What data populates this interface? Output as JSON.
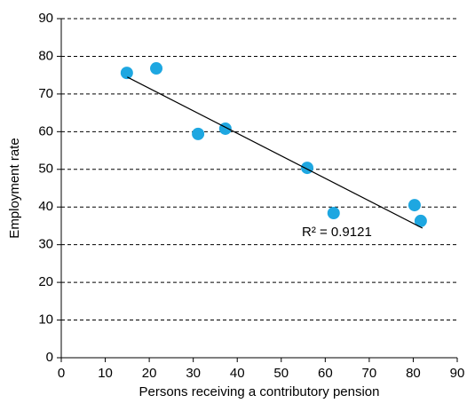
{
  "chart_data": {
    "type": "scatter",
    "x_label": "Persons receiving a contributory pension",
    "y_label": "Employment rate",
    "x": [
      14.9,
      21.6,
      31.1,
      37.3,
      55.9,
      61.9,
      80.3,
      81.7
    ],
    "values": [
      75.6,
      76.8,
      59.4,
      60.8,
      50.4,
      38.4,
      40.5,
      36.3
    ],
    "color": "#1ea7e1",
    "trendline": {
      "x": [
        15,
        82.1
      ],
      "y": [
        74.5,
        34.4
      ],
      "color": "#000000"
    },
    "annotation": "R² = 0.9121",
    "xlim": [
      0,
      90
    ],
    "xticks": [
      0,
      10,
      20,
      30,
      40,
      50,
      60,
      70,
      80,
      90
    ],
    "ylim": [
      0,
      90
    ],
    "yticks": [
      0,
      10,
      20,
      30,
      40,
      50,
      60,
      70,
      80,
      90
    ],
    "grid": true
  }
}
